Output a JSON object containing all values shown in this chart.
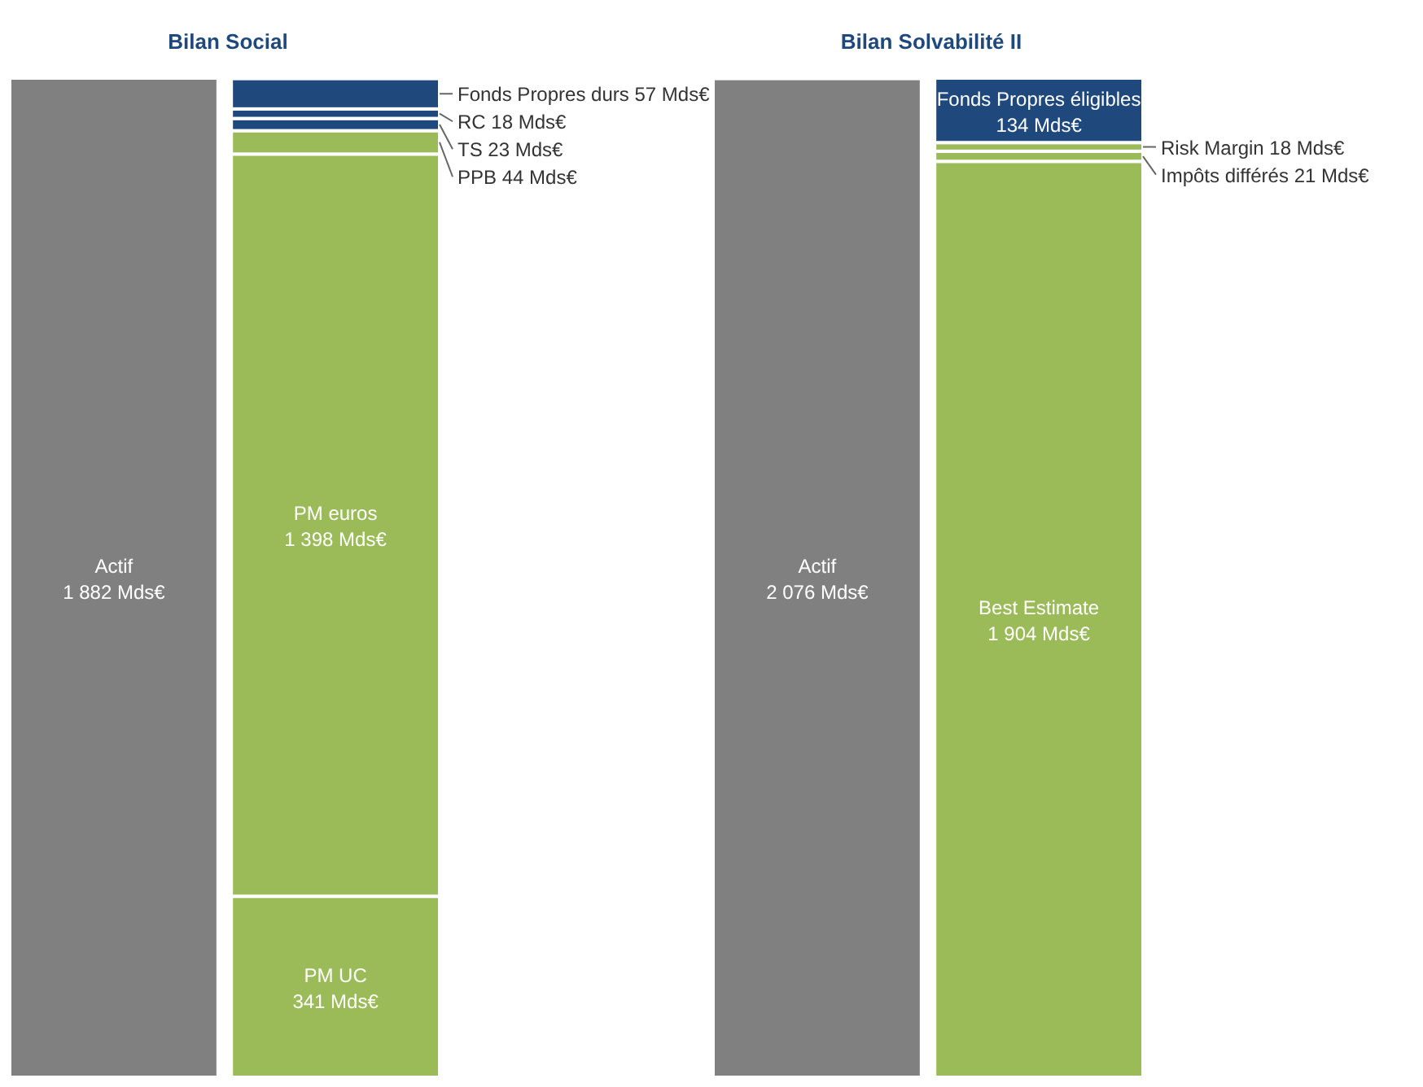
{
  "chart_data": [
    {
      "type": "bar",
      "title": "Bilan Social",
      "stacked": true,
      "tick_labels": false,
      "categories": [
        null,
        null
      ],
      "series": [
        {
          "name": "Actif",
          "color": "#808080",
          "values": [
            1882,
            null
          ],
          "value_labels": [
            "1 882 Mds€",
            null
          ]
        },
        {
          "name": "PM UC",
          "color": "#9bbb59",
          "values": [
            null,
            341
          ],
          "value_labels": [
            null,
            "341 Mds€"
          ]
        },
        {
          "name": "PM euros",
          "color": "#9bbb59",
          "values": [
            null,
            1398
          ],
          "value_labels": [
            null,
            "1 398 Mds€"
          ]
        },
        {
          "name": "PPB",
          "color": "#9bbb59",
          "values": [
            null,
            44
          ],
          "value_labels": [
            null,
            "44 Mds€"
          ]
        },
        {
          "name": "TS",
          "color": "#1f497d",
          "values": [
            null,
            23
          ],
          "value_labels": [
            null,
            "23 Mds€"
          ]
        },
        {
          "name": "RC",
          "color": "#1f497d",
          "values": [
            null,
            18
          ],
          "value_labels": [
            null,
            "18 Mds€"
          ]
        },
        {
          "name": "Fonds Propres durs",
          "color": "#1f497d",
          "values": [
            null,
            57
          ],
          "value_labels": [
            null,
            "57 Mds€"
          ]
        }
      ]
    },
    {
      "type": "bar",
      "title": "Bilan Solvabilité II",
      "stacked": true,
      "tick_labels": false,
      "categories": [
        null,
        null
      ],
      "series": [
        {
          "name": "Actif",
          "color": "#808080",
          "values": [
            2076,
            null
          ],
          "value_labels": [
            "2 076 Mds€",
            null
          ]
        },
        {
          "name": "Best Estimate",
          "color": "#9bbb59",
          "values": [
            null,
            1904
          ],
          "value_labels": [
            null,
            "1 904 Mds€"
          ]
        },
        {
          "name": "Impôts différés",
          "color": "#9bbb59",
          "values": [
            null,
            21
          ],
          "value_labels": [
            null,
            "21 Mds€"
          ]
        },
        {
          "name": "Risk Margin",
          "color": "#9bbb59",
          "values": [
            null,
            18
          ],
          "value_labels": [
            null,
            "18 Mds€"
          ]
        },
        {
          "name": "Fonds Propres éligibles",
          "color": "#1f497d",
          "values": [
            null,
            134
          ],
          "value_labels": [
            null,
            "134 Mds€"
          ]
        }
      ]
    }
  ]
}
